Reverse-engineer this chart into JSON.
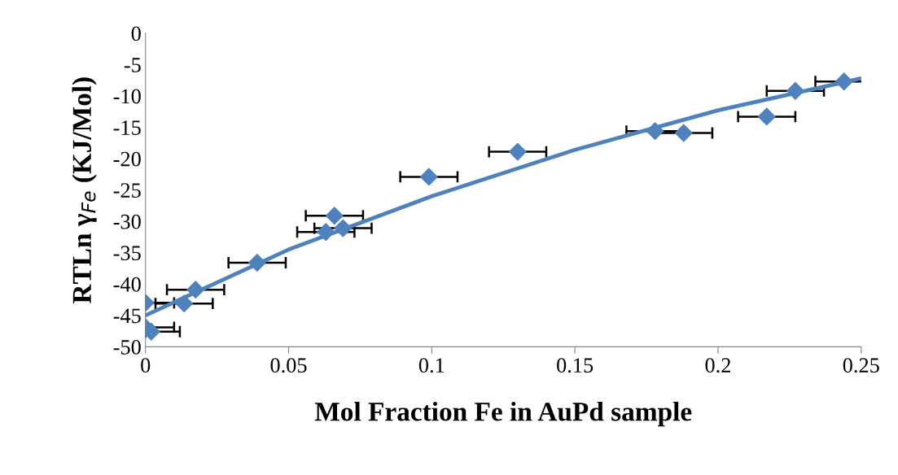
{
  "chart_data": {
    "type": "scatter",
    "xlabel": "Mol Fraction Fe in AuPd sample",
    "ylabel": "RTLn γ$_{Fe}$ (KJ/Mol)",
    "xlim": [
      0,
      0.25
    ],
    "xticks": [
      0,
      0.05,
      0.1,
      0.15,
      0.2,
      0.25
    ],
    "ylim": [
      -50,
      0
    ],
    "yticks": [
      -50,
      -45,
      -40,
      -35,
      -30,
      -25,
      -20,
      -15,
      -10,
      -5,
      0
    ],
    "grid": false,
    "legend": false,
    "marker": "diamond",
    "series": [
      {
        "color": "#4f81bd",
        "x": [
          0,
          0.0135,
          0.0175,
          0,
          0.002,
          0.039,
          0.063,
          0.066,
          0.069,
          0.099,
          0.13,
          0.178,
          0.188,
          0.217,
          0.227,
          0.244
        ],
        "values": [
          -43,
          -43.1,
          -40.9,
          -46.9,
          -47.6,
          -36.6,
          -31.7,
          -29.1,
          -31.1,
          -22.9,
          -18.9,
          -15.6,
          -15.9,
          -13.3,
          -9.2,
          -7.7
        ],
        "xerrors": [
          [
            0,
            0.01
          ],
          0.01,
          0.01,
          [
            0,
            0.01
          ],
          [
            0,
            0.012
          ],
          0.01,
          0.01,
          0.01,
          0.01,
          0.01,
          0.01,
          0.01,
          0.01,
          0.01,
          0.01,
          0.01
        ]
      },
      {
        "type": "line",
        "color": "#4f81bd",
        "marker": "none",
        "x": [
          0,
          0.05,
          0.1,
          0.15,
          0.2,
          0.25
        ],
        "values": [
          -45,
          -34.5,
          -26,
          -18.6,
          -12.3,
          -7.2
        ]
      }
    ]
  }
}
